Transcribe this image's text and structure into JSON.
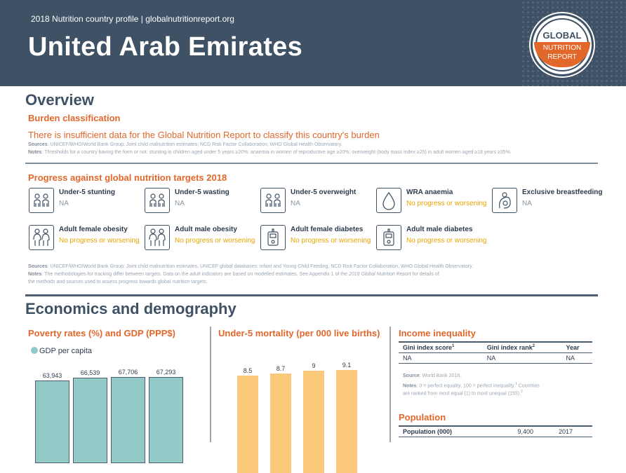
{
  "header": {
    "subtitle": "2018 Nutrition country profile  |  globalnutritionreport.org",
    "country": "United Arab Emirates",
    "logo": {
      "line1": "GLOBAL",
      "line2": "NUTRITION",
      "line3": "REPORT"
    }
  },
  "overview": {
    "title": "Overview",
    "burden_heading": "Burden classification",
    "burden_text": "There is insufficient data for the Global Nutrition Report to classify this country's burden",
    "burden_sources_label": "Sources",
    "burden_sources": ": UNICEF/WHO/World Bank Group: Joint child malnutrition estimates; NCD Risk Factor Collaboration; WHO Global Health Observatory.",
    "burden_notes_label": "Notes",
    "burden_notes": ": Thresholds for a country having the form or not: stunting in children aged under 5 years ≥20%; anaemia in women of reproductive age ≥20%; overweight (body mass index ≥25) in adult women aged ≥18 years ≥35%.",
    "progress_heading": "Progress against global nutrition targets 2018",
    "targets": [
      {
        "label": "Under-5 stunting",
        "value": "NA",
        "icon": "children-icon"
      },
      {
        "label": "Under-5 wasting",
        "value": "NA",
        "icon": "children-icon"
      },
      {
        "label": "Under-5 overweight",
        "value": "NA",
        "icon": "children-icon"
      },
      {
        "label": "WRA anaemia",
        "value": "No progress or worsening",
        "icon": "blood-drop-icon"
      },
      {
        "label": "Exclusive breastfeeding",
        "value": "NA",
        "icon": "breastfeeding-icon"
      },
      {
        "label": "Adult female obesity",
        "value": "No progress or worsening",
        "icon": "adults-icon"
      },
      {
        "label": "Adult male obesity",
        "value": "No progress or worsening",
        "icon": "adults-icon"
      },
      {
        "label": "Adult female diabetes",
        "value": "No progress or worsening",
        "icon": "glucose-meter-icon"
      },
      {
        "label": "Adult male diabetes",
        "value": "No progress or worsening",
        "icon": "glucose-meter-icon"
      }
    ],
    "progress_sources_label": "Sources",
    "progress_sources": ": UNICEF/WHO/World Bank Group: Joint child malnutrition estimates, UNICEF global databases: Infant and Young Child Feeding, NCD Risk Factor Collaboration, WHO Global Health Observatory.",
    "progress_notes_label": "Notes",
    "progress_notes_1": ": The methodologies for tracking differ between targets. Data on the adult indicators are based on modelled estimates. See Appendix 1 of the ",
    "progress_notes_italic": "2018 Global Nutrition Report",
    "progress_notes_2": " for details of",
    "progress_notes_3": "the methods and sources used to assess progress towards global nutrition targets."
  },
  "economics": {
    "title": "Economics and demography",
    "poverty_heading": "Poverty rates (%) and GDP (PPP$)",
    "gdp_legend": "GDP per capita",
    "mortality_heading": "Under-5 mortality (per 000 live births)",
    "income_heading": "Income inequality",
    "income_table": {
      "headers": [
        "Gini index score",
        "Gini index rank",
        "Year"
      ],
      "header_sups": [
        "1",
        "2",
        ""
      ],
      "row": [
        "NA",
        "NA",
        "NA"
      ]
    },
    "income_source_label": "Source",
    "income_source": ": World Bank 2018.",
    "income_notes_label": "Notes",
    "income_notes_1": ": 0 = perfect equality, 100 = perfect inequality.",
    "income_notes_sup1": "1",
    "income_notes_2": " Countries",
    "income_notes_3": "are ranked from most equal (1) to most unequal (155).",
    "income_notes_sup2": "2",
    "population_heading": "Population",
    "population_row": {
      "label": "Population (000)",
      "value": "9,400",
      "year": "2017"
    }
  },
  "chart_data": [
    {
      "type": "bar",
      "title": "Poverty rates (%) and GDP (PPP$)",
      "series": [
        {
          "name": "GDP per capita",
          "values": [
            63943,
            66539,
            67706,
            67293
          ]
        }
      ],
      "value_labels": [
        "63,943",
        "66,539",
        "67,706",
        "67,293"
      ],
      "color": "#93c9c6"
    },
    {
      "type": "bar",
      "title": "Under-5 mortality (per 000 live births)",
      "values": [
        8.5,
        8.7,
        9,
        9.1
      ],
      "value_labels": [
        "8.5",
        "8.7",
        "9",
        "9.1"
      ],
      "color": "#fcc97b"
    }
  ]
}
